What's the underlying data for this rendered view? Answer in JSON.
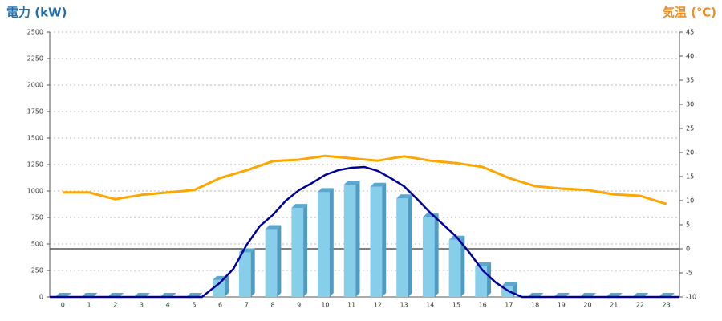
{
  "chart_data": {
    "type": "combo",
    "ylabel": "電力 (kW)",
    "y2label": "気温 (℃)",
    "categories": [
      "0",
      "1",
      "2",
      "3",
      "4",
      "5",
      "6",
      "7",
      "8",
      "9",
      "10",
      "11",
      "12",
      "13",
      "14",
      "15",
      "16",
      "17",
      "18",
      "19",
      "20",
      "21",
      "22",
      "23"
    ],
    "ylim": [
      0,
      2500
    ],
    "yticks": [
      0,
      250,
      500,
      750,
      1000,
      1250,
      1500,
      1750,
      2000,
      2250,
      2500
    ],
    "y2lim": [
      -10,
      45
    ],
    "y2ticks": [
      -10,
      -5,
      0,
      5,
      10,
      15,
      20,
      25,
      30,
      35,
      40,
      45
    ],
    "grid": true,
    "y2_zero_line": true,
    "series": [
      {
        "type": "bar",
        "color": "#87ceeb",
        "values": [
          0,
          0,
          0,
          0,
          0,
          0,
          160,
          420,
          640,
          840,
          990,
          1060,
          1040,
          930,
          750,
          540,
          290,
          100,
          0,
          0,
          0,
          0,
          0,
          0
        ]
      },
      {
        "type": "line",
        "color": "#000099",
        "x": [
          -0.5,
          5,
          5.3,
          6,
          6.5,
          7,
          7.5,
          8,
          8.5,
          9,
          9.5,
          10,
          10.5,
          11,
          11.5,
          12,
          12.5,
          13,
          13.5,
          14,
          14.5,
          15,
          15.5,
          16,
          16.5,
          17,
          17.5,
          23.5
        ],
        "values": [
          0,
          0,
          0,
          136,
          265,
          490,
          667,
          773,
          909,
          1008,
          1076,
          1152,
          1197,
          1220,
          1227,
          1190,
          1121,
          1045,
          924,
          795,
          682,
          568,
          417,
          250,
          136,
          53,
          0,
          0
        ]
      },
      {
        "type": "line",
        "axis": "y2",
        "color": "#ffa500",
        "values": [
          11.7,
          11.7,
          10.3,
          11.2,
          11.7,
          12.2,
          14.7,
          16.3,
          18.2,
          18.5,
          19.3,
          18.8,
          18.3,
          19.2,
          18.3,
          17.8,
          17,
          14.7,
          13,
          12.5,
          12.2,
          11.3,
          11,
          9.3
        ]
      }
    ]
  }
}
